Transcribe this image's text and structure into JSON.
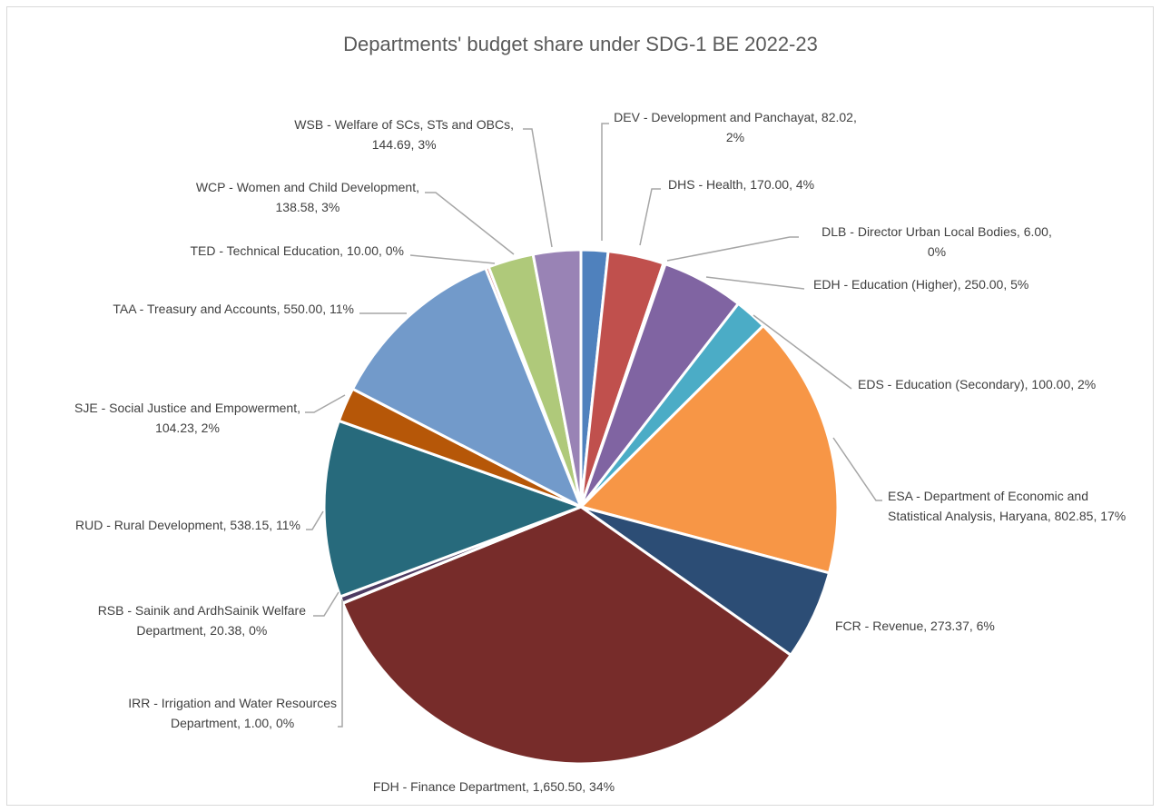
{
  "chart_data": {
    "type": "pie",
    "title": "Departments' budget share under SDG-1 BE 2022-23",
    "slices": [
      {
        "label": "DEV - Development and Panchayat",
        "value": 82.02,
        "percent": "2%",
        "color": "#4f81bd",
        "text": [
          "DEV - Development and Panchayat, 82.02,",
          "2%"
        ]
      },
      {
        "label": "DHS - Health",
        "value": 170.0,
        "percent": "4%",
        "color": "#c0504d",
        "text": [
          "DHS - Health, 170.00, 4%"
        ]
      },
      {
        "label": "DLB - Director Urban Local Bodies",
        "value": 6.0,
        "percent": "0%",
        "color": "#9bbb59",
        "text": [
          "DLB - Director Urban Local Bodies, 6.00,",
          "0%"
        ]
      },
      {
        "label": "EDH - Education (Higher)",
        "value": 250.0,
        "percent": "5%",
        "color": "#8064a2",
        "text": [
          "EDH - Education (Higher), 250.00, 5%"
        ]
      },
      {
        "label": "EDS - Education (Secondary)",
        "value": 100.0,
        "percent": "2%",
        "color": "#4bacc6",
        "text": [
          "EDS - Education (Secondary), 100.00, 2%"
        ]
      },
      {
        "label": "ESA - Department of Economic and Statistical Analysis, Haryana",
        "value": 802.85,
        "percent": "17%",
        "color": "#f79646",
        "text": [
          "ESA - Department of Economic and",
          "Statistical Analysis, Haryana, 802.85, 17%"
        ]
      },
      {
        "label": "FCR - Revenue",
        "value": 273.37,
        "percent": "6%",
        "color": "#2c4d75",
        "text": [
          "FCR - Revenue, 273.37, 6%"
        ]
      },
      {
        "label": "FDH - Finance Department",
        "value": 1650.5,
        "percent": "34%",
        "color": "#772c2a",
        "text": [
          "FDH - Finance Department, 1,650.50, 34%"
        ]
      },
      {
        "label": "IRR - Irrigation and Water Resources Department",
        "value": 1.0,
        "percent": "0%",
        "color": "#5f7530",
        "text": [
          "IRR - Irrigation and Water Resources",
          "Department, 1.00, 0%"
        ]
      },
      {
        "label": "RSB - Sainik and ArdhSainik Welfare Department",
        "value": 20.38,
        "percent": "0%",
        "color": "#4d3b62",
        "text": [
          "RSB - Sainik and ArdhSainik Welfare",
          "Department, 20.38, 0%"
        ]
      },
      {
        "label": "RUD - Rural Development",
        "value": 538.15,
        "percent": "11%",
        "color": "#276a7c",
        "text": [
          "RUD - Rural Development, 538.15, 11%"
        ]
      },
      {
        "label": "SJE - Social Justice and Empowerment",
        "value": 104.23,
        "percent": "2%",
        "color": "#b65708",
        "text": [
          "SJE - Social Justice and Empowerment,",
          "104.23, 2%"
        ]
      },
      {
        "label": "TAA - Treasury and Accounts",
        "value": 550.0,
        "percent": "11%",
        "color": "#729aca",
        "text": [
          "TAA - Treasury and Accounts, 550.00, 11%"
        ]
      },
      {
        "label": "TED - Technical Education",
        "value": 10.0,
        "percent": "0%",
        "color": "#cd7371",
        "text": [
          "TED - Technical Education, 10.00, 0%"
        ]
      },
      {
        "label": "WCP - Women and Child Development",
        "value": 138.58,
        "percent": "3%",
        "color": "#afc97a",
        "text": [
          "WCP - Women and Child Development,",
          "138.58, 3%"
        ]
      },
      {
        "label": "WSB - Welfare of SCs, STs and OBCs",
        "value": 144.69,
        "percent": "3%",
        "color": "#9983b5",
        "text": [
          "WSB - Welfare of SCs, STs and OBCs,",
          "144.69, 3%"
        ]
      }
    ]
  }
}
